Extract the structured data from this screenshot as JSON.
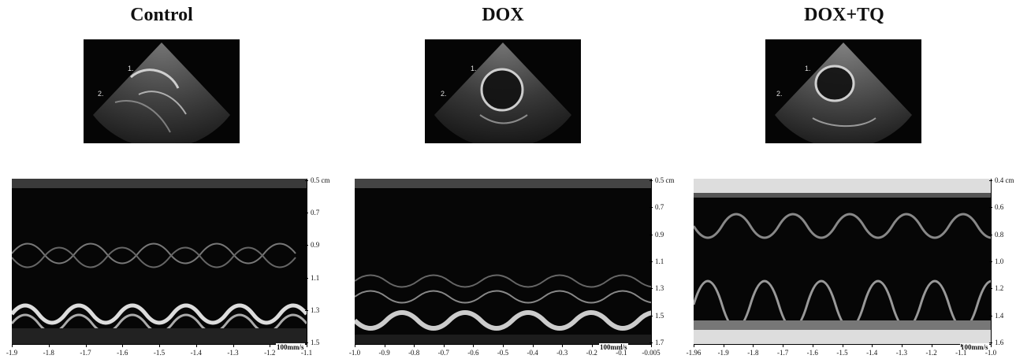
{
  "panels": [
    {
      "title": "Control",
      "speed": "100mm/s",
      "marker1": "1.",
      "marker2": "2.",
      "yticks": [
        "0.5 cm",
        "0.7",
        "0.9",
        "1.1",
        "1.3",
        "1.5"
      ],
      "xticks": [
        "-1.9",
        "-1.8",
        "-1.7",
        "-1.6",
        "-1.5",
        "-1.4",
        "-1.3",
        "-1.2",
        "-1.1"
      ]
    },
    {
      "title": "DOX",
      "speed": "100mm/s",
      "marker1": "1.",
      "marker2": "2.",
      "yticks": [
        "0.5 cm",
        "0.7",
        "0.9",
        "1.1",
        "1.3",
        "1.5",
        "1.7"
      ],
      "xticks": [
        "-1.0",
        "-0.9",
        "-0.8",
        "-0.7",
        "-0.6",
        "-0.5",
        "-0.4",
        "-0.3",
        "-0.2",
        "-0.1",
        "-0.005"
      ]
    },
    {
      "title": "DOX+TQ",
      "speed": "100mm/s",
      "marker1": "1.",
      "marker2": "2.",
      "yticks": [
        "0.4 cm",
        "0.6",
        "0.8",
        "1.0",
        "1.2",
        "1.4",
        "1.6"
      ],
      "xticks": [
        "-1.96",
        "-1.9",
        "-1.8",
        "-1.7",
        "-1.6",
        "-1.5",
        "-1.4",
        "-1.3",
        "-1.2",
        "-1.1",
        "-1.0"
      ]
    }
  ]
}
